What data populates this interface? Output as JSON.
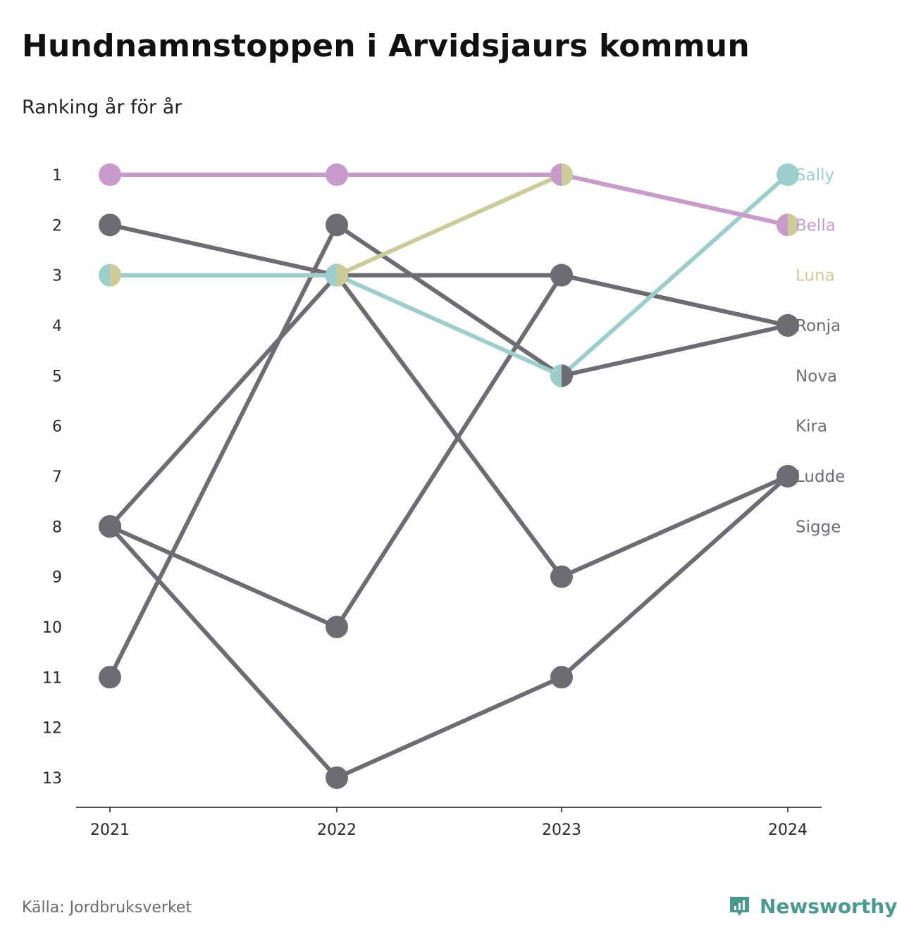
{
  "title": "Hundnamnstoppen i Arvidsjaurs kommun",
  "subtitle": "Ranking år för år",
  "source": "Källa: Jordbruksverket",
  "brand": "Newsworthy",
  "colors": {
    "Sally": "#9ccfcb",
    "Bella": "#c99bcd",
    "Luna": "#cccc99",
    "grey": "#6d6c72",
    "brand": "#4b9a8f"
  },
  "chart_data": {
    "type": "line",
    "x": [
      "2021",
      "2022",
      "2023",
      "2024"
    ],
    "y_ticks": [
      "1",
      "2",
      "3",
      "4",
      "5",
      "6",
      "7",
      "8",
      "9",
      "10",
      "11",
      "12",
      "13"
    ],
    "ylim": [
      1,
      13
    ],
    "y_reversed": true,
    "series": [
      {
        "name": "Sally",
        "values": [
          3,
          3,
          5,
          1
        ],
        "highlight": true
      },
      {
        "name": "Bella",
        "values": [
          1,
          1,
          1,
          2
        ],
        "highlight": true
      },
      {
        "name": "Luna",
        "values": [
          3,
          3,
          1,
          2
        ],
        "highlight": true
      },
      {
        "name": "Ronja",
        "values": [
          2,
          3,
          3,
          4
        ],
        "highlight": false
      },
      {
        "name": "Nova",
        "values": [
          11,
          2,
          5,
          4
        ],
        "highlight": false
      },
      {
        "name": "Kira",
        "values": [
          8,
          10,
          3,
          4
        ],
        "highlight": false
      },
      {
        "name": "Ludde",
        "values": [
          8,
          13,
          11,
          7
        ],
        "highlight": false
      },
      {
        "name": "Sigge",
        "values": [
          8,
          3,
          9,
          7
        ],
        "highlight": false
      }
    ],
    "end_labels": [
      {
        "name": "Sally",
        "rank": 1
      },
      {
        "name": "Bella",
        "rank": 2
      },
      {
        "name": "Luna",
        "rank": 3
      },
      {
        "name": "Ronja",
        "rank": 4
      },
      {
        "name": "Nova",
        "rank": 5
      },
      {
        "name": "Kira",
        "rank": 6
      },
      {
        "name": "Ludde",
        "rank": 7
      },
      {
        "name": "Sigge",
        "rank": 8
      }
    ]
  }
}
